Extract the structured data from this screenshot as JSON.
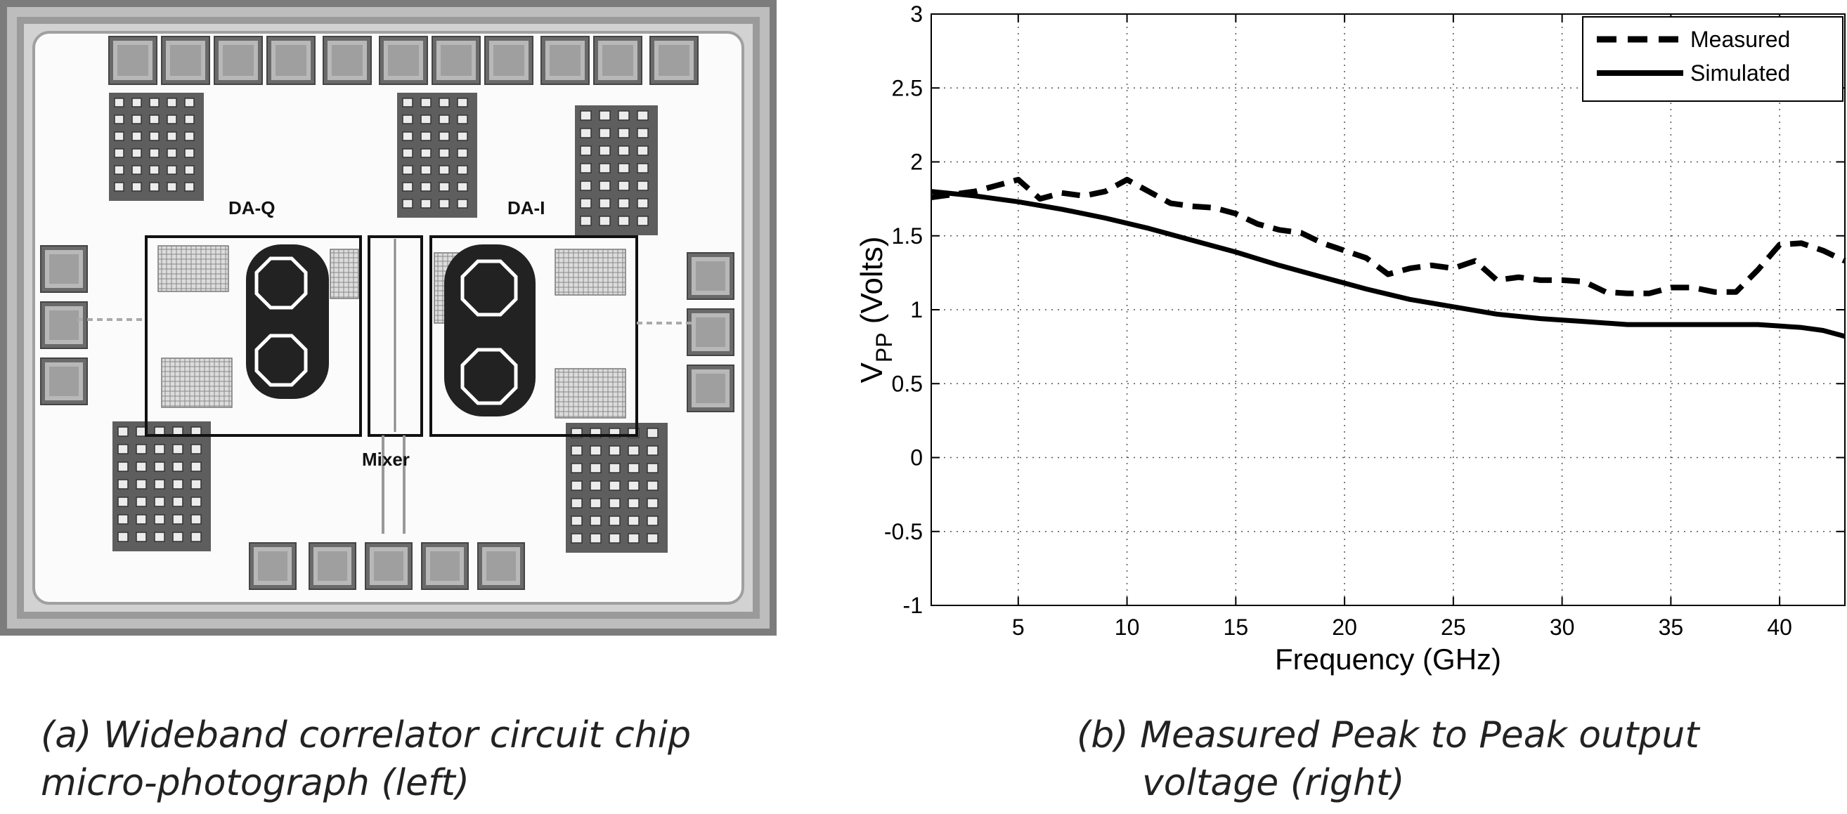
{
  "photo": {
    "labels": {
      "da_q": "DA-Q",
      "da_i": "DA-I",
      "mixer": "Mixer"
    }
  },
  "captions": {
    "a_line1": "(a) Wideband correlator circuit chip",
    "a_line2": "micro-photograph (left)",
    "b_line1": "(b) Measured Peak to Peak output",
    "b_line2": "voltage (right)"
  },
  "chart_data": {
    "type": "line",
    "title": "",
    "xlabel": "Frequency (GHz)",
    "ylabel_main": "V",
    "ylabel_sub": "PP",
    "ylabel_rest": " (Volts)",
    "xlim": [
      1,
      43
    ],
    "ylim": [
      -1,
      3
    ],
    "xticks": [
      5,
      10,
      15,
      20,
      25,
      30,
      35,
      40
    ],
    "yticks": [
      -1,
      -0.5,
      0,
      0.5,
      1,
      1.5,
      2,
      2.5,
      3
    ],
    "grid": true,
    "legend_position": "top-right",
    "series": [
      {
        "name": "Measured",
        "style": "dashed",
        "x": [
          1,
          2,
          3,
          4,
          5,
          6,
          7,
          8,
          9,
          10,
          11,
          12,
          13,
          14,
          15,
          16,
          17,
          18,
          19,
          20,
          21,
          22,
          23,
          24,
          25,
          26,
          27,
          28,
          29,
          30,
          31,
          32,
          33,
          34,
          35,
          36,
          37,
          38,
          39,
          40,
          41,
          42,
          43
        ],
        "y": [
          1.76,
          1.78,
          1.8,
          1.84,
          1.88,
          1.75,
          1.79,
          1.77,
          1.8,
          1.88,
          1.8,
          1.72,
          1.7,
          1.69,
          1.65,
          1.58,
          1.54,
          1.52,
          1.45,
          1.4,
          1.35,
          1.24,
          1.28,
          1.3,
          1.28,
          1.33,
          1.2,
          1.22,
          1.2,
          1.2,
          1.19,
          1.12,
          1.11,
          1.11,
          1.15,
          1.15,
          1.12,
          1.12,
          1.27,
          1.44,
          1.45,
          1.4,
          1.33
        ]
      },
      {
        "name": "Simulated",
        "style": "solid",
        "x": [
          1,
          3,
          5,
          7,
          9,
          11,
          13,
          15,
          17,
          19,
          21,
          23,
          25,
          27,
          29,
          31,
          33,
          35,
          37,
          39,
          41,
          42,
          43
        ],
        "y": [
          1.8,
          1.77,
          1.73,
          1.68,
          1.62,
          1.55,
          1.47,
          1.39,
          1.3,
          1.22,
          1.14,
          1.07,
          1.02,
          0.97,
          0.94,
          0.92,
          0.9,
          0.9,
          0.9,
          0.9,
          0.88,
          0.86,
          0.82
        ]
      }
    ]
  }
}
